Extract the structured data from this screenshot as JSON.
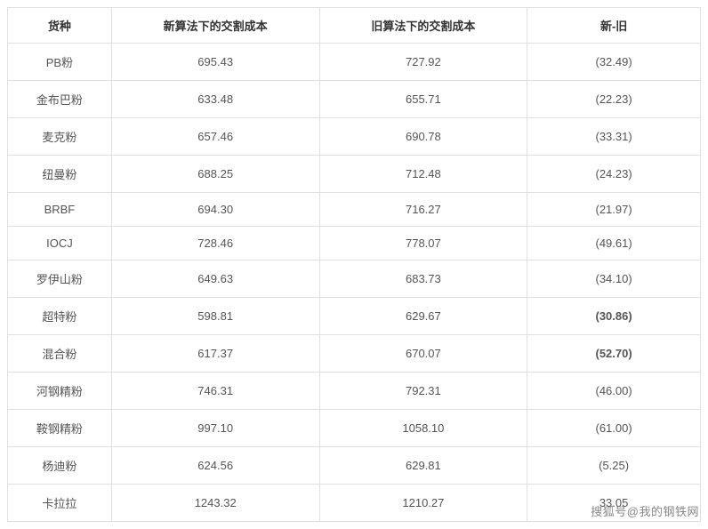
{
  "table": {
    "columns": {
      "name": "货种",
      "new_cost": "新算法下的交割成本",
      "old_cost": "旧算法下的交割成本",
      "diff": "新-旧"
    },
    "rows": [
      {
        "name": "PB粉",
        "new_cost": "695.43",
        "old_cost": "727.92",
        "diff": "(32.49)",
        "diff_bold": false
      },
      {
        "name": "金布巴粉",
        "new_cost": "633.48",
        "old_cost": "655.71",
        "diff": "(22.23)",
        "diff_bold": false
      },
      {
        "name": "麦克粉",
        "new_cost": "657.46",
        "old_cost": "690.78",
        "diff": "(33.31)",
        "diff_bold": false
      },
      {
        "name": "纽曼粉",
        "new_cost": "688.25",
        "old_cost": "712.48",
        "diff": "(24.23)",
        "diff_bold": false
      },
      {
        "name": "BRBF",
        "new_cost": "694.30",
        "old_cost": "716.27",
        "diff": "(21.97)",
        "diff_bold": false
      },
      {
        "name": "IOCJ",
        "new_cost": "728.46",
        "old_cost": "778.07",
        "diff": "(49.61)",
        "diff_bold": false
      },
      {
        "name": "罗伊山粉",
        "new_cost": "649.63",
        "old_cost": "683.73",
        "diff": "(34.10)",
        "diff_bold": false
      },
      {
        "name": "超特粉",
        "new_cost": "598.81",
        "old_cost": "629.67",
        "diff": "(30.86)",
        "diff_bold": true
      },
      {
        "name": "混合粉",
        "new_cost": "617.37",
        "old_cost": "670.07",
        "diff": "(52.70)",
        "diff_bold": true
      },
      {
        "name": "河钢精粉",
        "new_cost": "746.31",
        "old_cost": "792.31",
        "diff": "(46.00)",
        "diff_bold": false
      },
      {
        "name": "鞍钢精粉",
        "new_cost": "997.10",
        "old_cost": "1058.10",
        "diff": "(61.00)",
        "diff_bold": false
      },
      {
        "name": "杨迪粉",
        "new_cost": "624.56",
        "old_cost": "629.81",
        "diff": "(5.25)",
        "diff_bold": false
      },
      {
        "name": "卡拉拉",
        "new_cost": "1243.32",
        "old_cost": "1210.27",
        "diff": "33.05",
        "diff_bold": false
      }
    ],
    "col_widths": {
      "name": "15%",
      "new_cost": "30%",
      "old_cost": "30%",
      "diff": "25%"
    },
    "border_color": "#e0e0e0",
    "header_text_color": "#333333",
    "cell_text_color": "#555555",
    "background_color": "#ffffff",
    "font_size": 13
  },
  "attribution": "搜狐号@我的钢铁网"
}
